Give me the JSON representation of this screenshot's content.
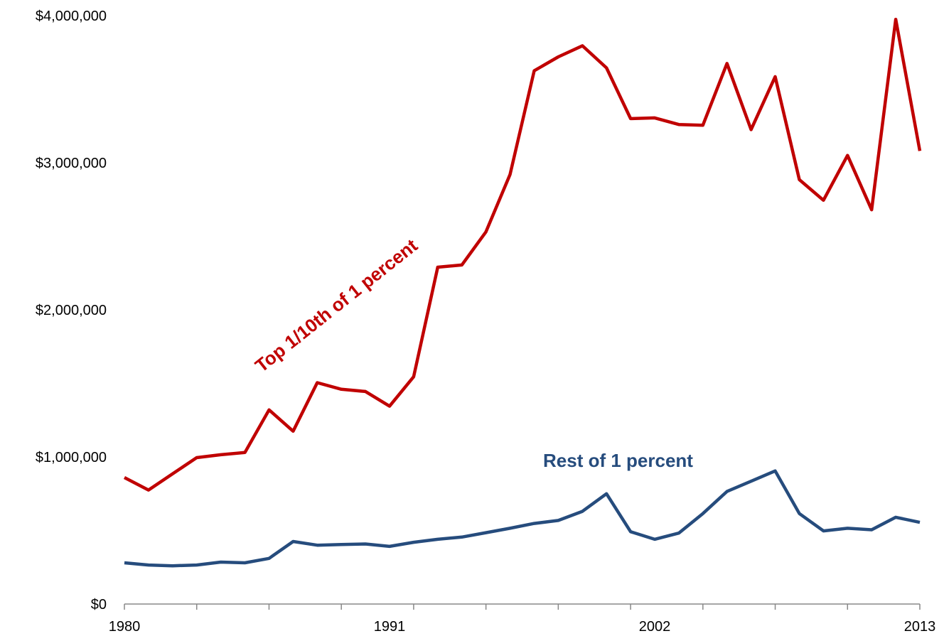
{
  "chart_data": {
    "type": "line",
    "title": "",
    "xlabel": "",
    "ylabel": "",
    "x": [
      1980,
      1981,
      1982,
      1983,
      1984,
      1985,
      1986,
      1987,
      1988,
      1989,
      1990,
      1991,
      1992,
      1993,
      1994,
      1995,
      1996,
      1997,
      1998,
      1999,
      2000,
      2001,
      2002,
      2003,
      2004,
      2005,
      2006,
      2007,
      2008,
      2009,
      2010,
      2011,
      2012,
      2013
    ],
    "x_tick_labels": [
      {
        "year": 1980,
        "label": "1980"
      },
      {
        "year": 1991,
        "label": "1991"
      },
      {
        "year": 2002,
        "label": "2002"
      },
      {
        "year": 2013,
        "label": "2013"
      }
    ],
    "y_tick_labels": [
      {
        "value": 0,
        "label": "$0"
      },
      {
        "value": 1000000,
        "label": "$1,000,000"
      },
      {
        "value": 2000000,
        "label": "$2,000,000"
      },
      {
        "value": 3000000,
        "label": "$3,000,000"
      },
      {
        "value": 4000000,
        "label": "$4,000,000"
      }
    ],
    "ylim": [
      0,
      4000000
    ],
    "xlim": [
      1980,
      2013
    ],
    "grid": false,
    "series": [
      {
        "name": "Top 1/10th of 1 percent",
        "color": "#C00000",
        "values": [
          860000,
          775000,
          885000,
          995000,
          1015000,
          1030000,
          1320000,
          1175000,
          1505000,
          1460000,
          1445000,
          1345000,
          1545000,
          2290000,
          2305000,
          2530000,
          2920000,
          3625000,
          3720000,
          3795000,
          3645000,
          3300000,
          3305000,
          3260000,
          3255000,
          3675000,
          3225000,
          3585000,
          2885000,
          2745000,
          3050000,
          2680000,
          3975000,
          3080000
        ]
      },
      {
        "name": "Rest of 1 percent",
        "color": "#264C7D",
        "values": [
          280000,
          265000,
          260000,
          265000,
          285000,
          280000,
          310000,
          425000,
          400000,
          405000,
          408000,
          392000,
          420000,
          440000,
          455000,
          485000,
          515000,
          548000,
          568000,
          630000,
          750000,
          492000,
          440000,
          482000,
          615000,
          765000,
          835000,
          905000,
          615000,
          497000,
          515000,
          505000,
          590000,
          555000
        ]
      }
    ]
  }
}
